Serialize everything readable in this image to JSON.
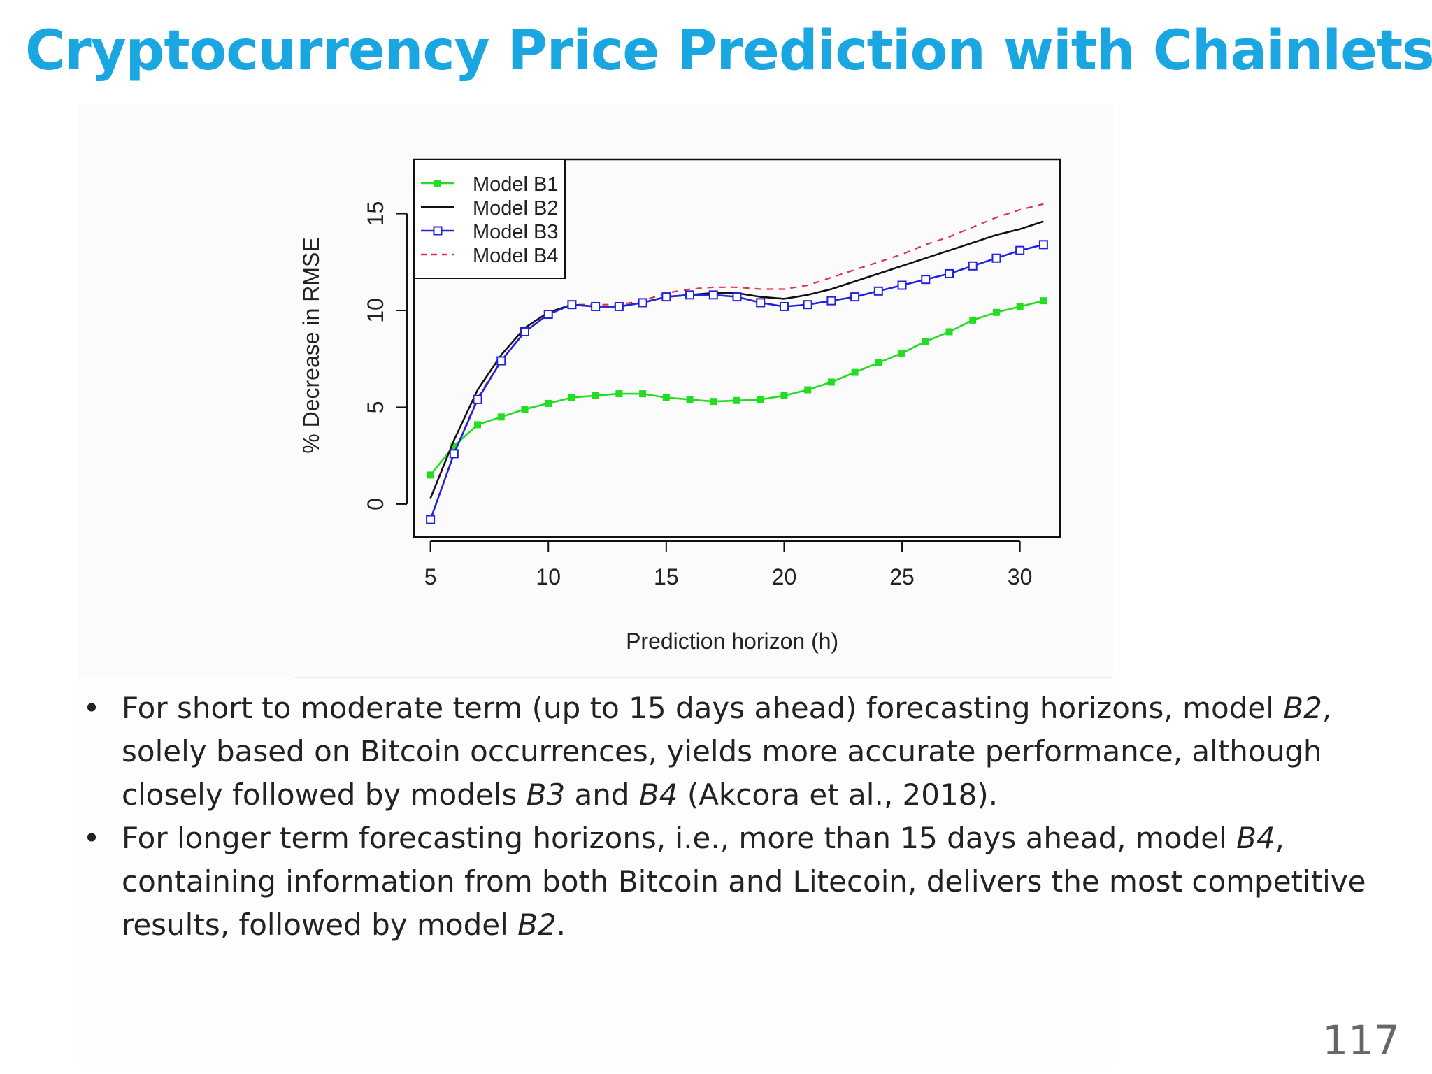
{
  "slide": {
    "title": "Cryptocurrency Price Prediction with Chainlets",
    "page_number": "117",
    "bullets": [
      {
        "parts": [
          {
            "text": "For short to moderate term (up to 15 days ahead) forecasting horizons, model ",
            "italic": false
          },
          {
            "text": "B2",
            "italic": true
          },
          {
            "text": ", solely based on Bitcoin occurrences, yields more accurate performance, although closely followed by models ",
            "italic": false
          },
          {
            "text": "B3",
            "italic": true
          },
          {
            "text": " and ",
            "italic": false
          },
          {
            "text": "B4",
            "italic": true
          },
          {
            "text": " (Akcora et al., 2018).",
            "italic": false
          }
        ]
      },
      {
        "parts": [
          {
            "text": "For longer term forecasting horizons, i.e., more than 15 days ahead, model ",
            "italic": false
          },
          {
            "text": "B4",
            "italic": true
          },
          {
            "text": ", containing information from both Bitcoin and Litecoin, delivers the most competitive results, followed by model ",
            "italic": false
          },
          {
            "text": "B2",
            "italic": true
          },
          {
            "text": ".",
            "italic": false
          }
        ]
      }
    ]
  },
  "chart_data": {
    "type": "line",
    "title": "",
    "xlabel": "Prediction horizon (h)",
    "ylabel": "% Decrease in RMSE",
    "xlim": [
      4.3,
      31.7
    ],
    "ylim": [
      -1.7,
      17.8
    ],
    "xticks": [
      5,
      10,
      15,
      20,
      25,
      30
    ],
    "yticks": [
      0,
      5,
      10,
      15
    ],
    "grid": false,
    "legend_position": "top-left",
    "x": [
      5,
      6,
      7,
      8,
      9,
      10,
      11,
      12,
      13,
      14,
      15,
      16,
      17,
      18,
      19,
      20,
      21,
      22,
      23,
      24,
      25,
      26,
      27,
      28,
      29,
      30,
      31
    ],
    "series": [
      {
        "name": "Model B1",
        "color": "#22dd22",
        "line_style": "solid",
        "marker": "filled-square",
        "values": [
          1.5,
          3.0,
          4.1,
          4.5,
          4.9,
          5.2,
          5.5,
          5.6,
          5.7,
          5.7,
          5.5,
          5.4,
          5.3,
          5.35,
          5.4,
          5.6,
          5.9,
          6.3,
          6.8,
          7.3,
          7.8,
          8.4,
          8.9,
          9.5,
          9.9,
          10.2,
          10.5
        ]
      },
      {
        "name": "Model B2",
        "color": "#111111",
        "line_style": "solid",
        "marker": "none",
        "values": [
          0.3,
          3.3,
          5.9,
          7.7,
          9.1,
          9.9,
          10.3,
          10.2,
          10.2,
          10.4,
          10.7,
          10.8,
          10.9,
          10.9,
          10.7,
          10.6,
          10.8,
          11.1,
          11.5,
          11.9,
          12.3,
          12.7,
          13.1,
          13.5,
          13.9,
          14.2,
          14.6
        ]
      },
      {
        "name": "Model B3",
        "color": "#2222dd",
        "line_style": "solid",
        "marker": "open-square",
        "values": [
          -0.8,
          2.6,
          5.4,
          7.4,
          8.9,
          9.8,
          10.3,
          10.2,
          10.2,
          10.4,
          10.7,
          10.8,
          10.8,
          10.7,
          10.4,
          10.2,
          10.3,
          10.5,
          10.7,
          11.0,
          11.3,
          11.6,
          11.9,
          12.3,
          12.7,
          13.1,
          13.4
        ]
      },
      {
        "name": "Model B4",
        "color": "#e0304a",
        "line_style": "dashed",
        "marker": "none",
        "values": [
          -0.8,
          2.6,
          5.5,
          7.4,
          8.9,
          9.8,
          10.3,
          10.3,
          10.3,
          10.5,
          10.9,
          11.1,
          11.2,
          11.2,
          11.1,
          11.1,
          11.3,
          11.7,
          12.1,
          12.5,
          12.9,
          13.4,
          13.8,
          14.3,
          14.8,
          15.2,
          15.5
        ]
      }
    ]
  }
}
